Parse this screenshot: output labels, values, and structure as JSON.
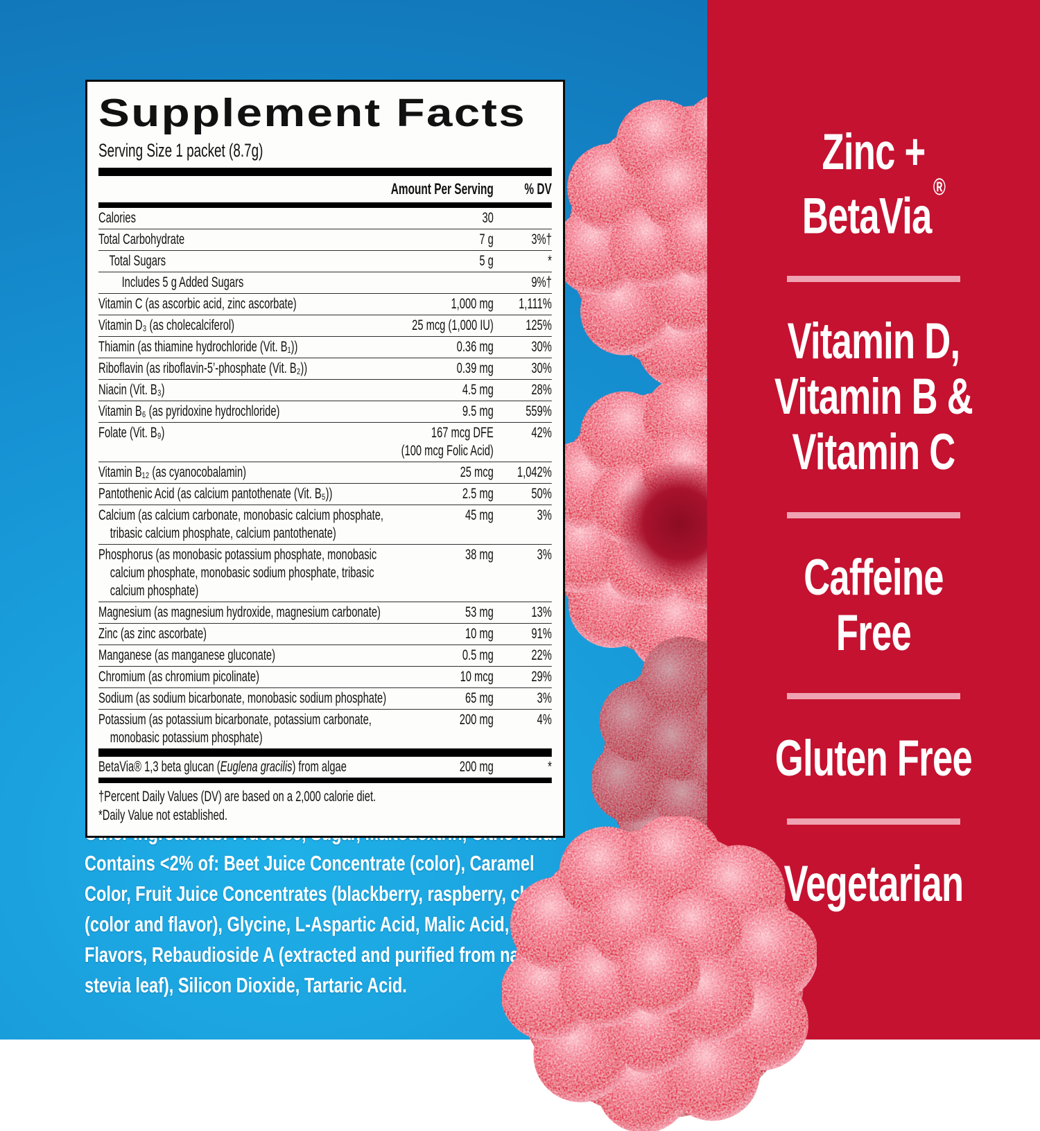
{
  "colors": {
    "blue_bright": "#1fb0e8",
    "blue_mid": "#1692d3",
    "blue_dark": "#0e67ab",
    "red_panel": "#c41230",
    "divider_pink": "#efa2b2",
    "panel_bg": "#fdfdfc",
    "text_dark": "#111111",
    "text_white": "#ffffff"
  },
  "supplement_facts": {
    "title": "Supplement Facts",
    "serving_size": "Serving Size 1 packet (8.7g)",
    "columns": {
      "amount": "Amount Per Serving",
      "dv": "% DV"
    },
    "rows": [
      {
        "label": "Calories",
        "amount": "30",
        "dv": ""
      },
      {
        "label": "Total Carbohydrate",
        "amount": "7 g",
        "dv": "3%†"
      },
      {
        "label": "Total Sugars",
        "amount": "5 g",
        "dv": "*",
        "indent": 1
      },
      {
        "label": "Includes 5 g Added Sugars",
        "amount": "",
        "dv": "9%†",
        "indent": 2
      },
      {
        "label": "Vitamin C (as ascorbic acid, zinc ascorbate)",
        "amount": "1,000 mg",
        "dv": "1,111%"
      },
      {
        "label": "Vitamin D₃ (as cholecalciferol)",
        "amount": "25 mcg (1,000 IU)",
        "dv": "125%"
      },
      {
        "label": "Thiamin (as thiamine hydrochloride (Vit. B₁))",
        "amount": "0.36 mg",
        "dv": "30%"
      },
      {
        "label": "Riboflavin (as riboflavin-5’-phosphate (Vit. B₂))",
        "amount": "0.39 mg",
        "dv": "30%"
      },
      {
        "label": "Niacin (Vit. B₃)",
        "amount": "4.5 mg",
        "dv": "28%"
      },
      {
        "label": "Vitamin B₆ (as pyridoxine hydrochloride)",
        "amount": "9.5 mg",
        "dv": "559%"
      },
      {
        "label": "Folate (Vit. B₉)",
        "amount": "167 mcg DFE\n(100 mcg Folic Acid)",
        "dv": "42%",
        "wide_amount": true
      },
      {
        "label": "Vitamin B₁₂ (as cyanocobalamin)",
        "amount": "25 mcg",
        "dv": "1,042%"
      },
      {
        "label": "Pantothenic Acid (as calcium pantothenate (Vit. B₅))",
        "amount": "2.5 mg",
        "dv": "50%"
      },
      {
        "label": "Calcium (as calcium carbonate, monobasic calcium phosphate, tribasic calcium phosphate, calcium pantothenate)",
        "amount": "45 mg",
        "dv": "3%"
      },
      {
        "label": "Phosphorus (as monobasic potassium phosphate, monobasic calcium phosphate, monobasic sodium phosphate, tribasic calcium phosphate)",
        "amount": "38 mg",
        "dv": "3%"
      },
      {
        "label": "Magnesium (as magnesium hydroxide, magnesium carbonate)",
        "amount": "53 mg",
        "dv": "13%"
      },
      {
        "label": "Zinc (as zinc ascorbate)",
        "amount": "10 mg",
        "dv": "91%"
      },
      {
        "label": "Manganese (as manganese gluconate)",
        "amount": "0.5 mg",
        "dv": "22%"
      },
      {
        "label": "Chromium (as chromium picolinate)",
        "amount": "10 mcg",
        "dv": "29%"
      },
      {
        "label": "Sodium (as sodium bicarbonate, monobasic sodium phosphate)",
        "amount": "65 mg",
        "dv": "3%"
      },
      {
        "label": "Potassium (as potassium bicarbonate, potassium carbonate, monobasic potassium phosphate)",
        "amount": "200 mg",
        "dv": "4%"
      }
    ],
    "betavia_row": {
      "pre": "BetaVia® 1,3 beta glucan (",
      "italic": "Euglena gracilis",
      "post": ") from algae",
      "amount": "200 mg",
      "dv": "*"
    },
    "footnotes": [
      "†Percent Daily Values (DV) are based on a 2,000 calorie diet.",
      "*Daily Value not established."
    ]
  },
  "other_ingredients": {
    "segments": [
      {
        "text": "Other Ingredients:",
        "bold": true
      },
      {
        "text": " Fructose, Sugar, Maltodextrin, Citric Acid. ",
        "bold": false
      },
      {
        "text": "Contains <2% of:",
        "bold": true
      },
      {
        "text": " Beet Juice Concentrate (color), Caramel Color, Fruit Juice Concentrates (blackberry, raspberry, cherry) (color and flavor), Glycine, L-Aspartic Acid, Malic Acid, Natural Flavors, Rebaudioside A (extracted and purified from natural stevia leaf), Silicon Dioxide, Tartaric Acid.",
        "bold": false
      }
    ]
  },
  "right_panel": {
    "reg_symbol": "®",
    "claims": [
      {
        "lines": [
          "Zinc +",
          "BetaVia"
        ],
        "reg_on_line": 1
      },
      {
        "lines": [
          "Vitamin D,",
          "Vitamin B &",
          "Vitamin C"
        ]
      },
      {
        "lines": [
          "Caffeine",
          "Free"
        ]
      },
      {
        "lines": [
          "Gluten Free"
        ]
      },
      {
        "lines": [
          "Vegetarian"
        ]
      }
    ]
  }
}
